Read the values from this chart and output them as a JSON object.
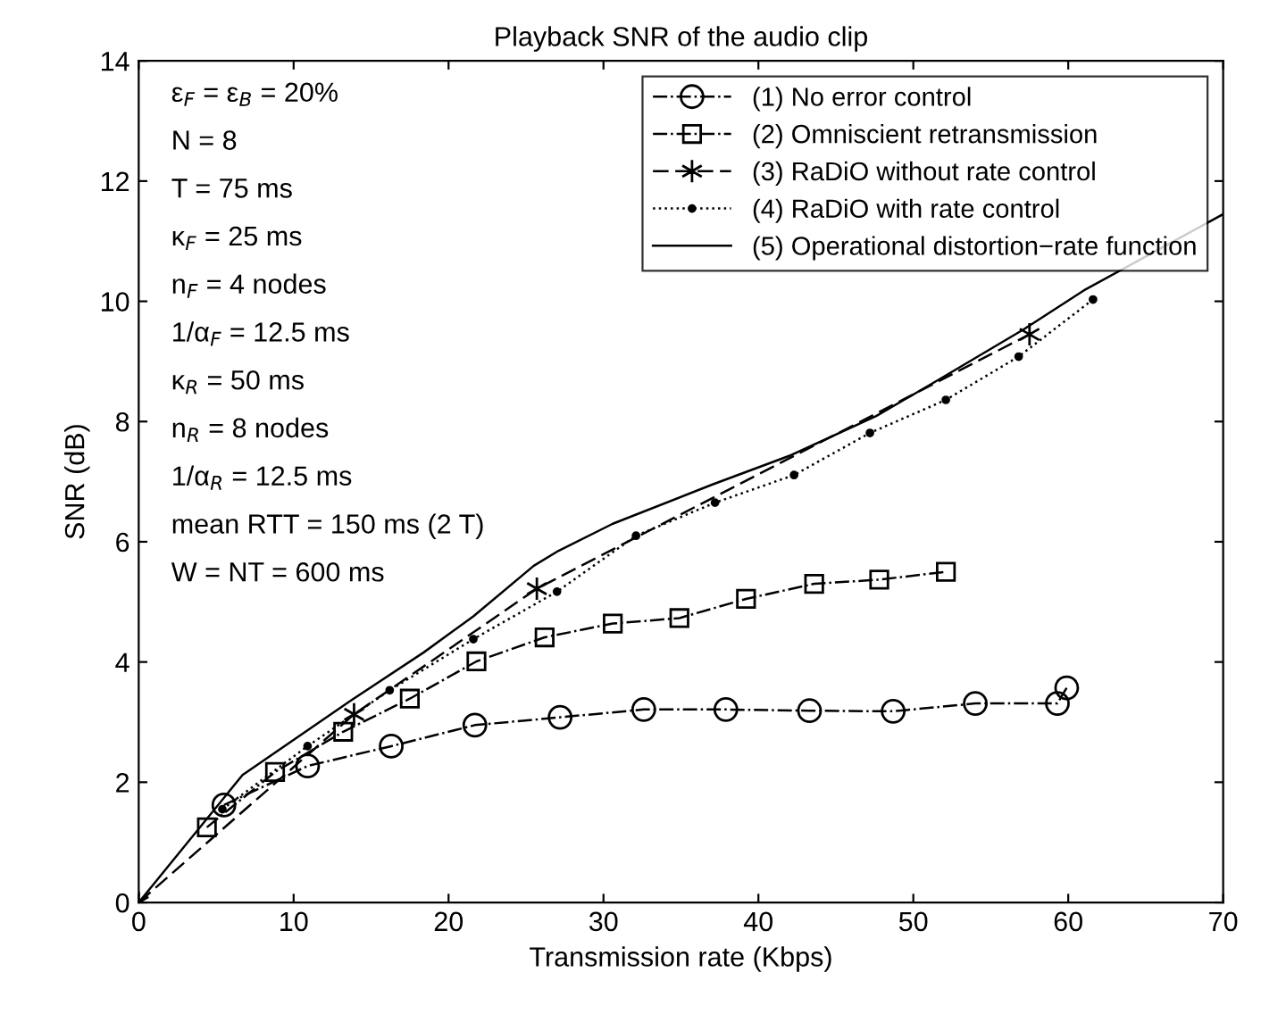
{
  "chart_data": {
    "type": "line",
    "title": "Playback SNR of the audio clip",
    "xlabel": "Transmission rate (Kbps)",
    "ylabel": "SNR (dB)",
    "xlim": [
      0,
      70
    ],
    "ylim": [
      0,
      14
    ],
    "xticks": [
      0,
      10,
      20,
      30,
      40,
      50,
      60,
      70
    ],
    "yticks": [
      0,
      2,
      4,
      6,
      8,
      10,
      12,
      14
    ],
    "grid": false,
    "legend": "top right",
    "series": [
      {
        "name": "(1) No error control",
        "color": "#000000",
        "marker": "circle",
        "line_style": "dashdot",
        "x": [
          5.5,
          10.9,
          16.3,
          21.7,
          27.2,
          32.6,
          37.9,
          43.3,
          48.7,
          54.0,
          59.3,
          59.9
        ],
        "values": [
          1.62,
          2.27,
          2.6,
          2.95,
          3.08,
          3.21,
          3.21,
          3.19,
          3.18,
          3.31,
          3.31,
          3.57
        ]
      },
      {
        "name": "(2) Omniscient retransmission",
        "color": "#000000",
        "marker": "square",
        "line_style": "dashdot",
        "x": [
          4.4,
          8.8,
          13.2,
          17.5,
          21.8,
          26.2,
          30.6,
          34.9,
          39.2,
          43.6,
          47.8,
          52.1
        ],
        "values": [
          1.25,
          2.17,
          2.84,
          3.39,
          4.01,
          4.41,
          4.64,
          4.73,
          5.05,
          5.3,
          5.37,
          5.5
        ]
      },
      {
        "name": "(3) RaDiO without rate control",
        "color": "#000000",
        "marker": "cross",
        "line_style": "dashed",
        "x": [
          0,
          13.9,
          25.7,
          57.5
        ],
        "values": [
          0,
          3.13,
          5.22,
          9.45
        ]
      },
      {
        "name": "(4) RaDiO with rate control",
        "color": "#000000",
        "marker": "dot",
        "line_style": "dotted",
        "x": [
          5.4,
          10.9,
          16.2,
          21.6,
          27.0,
          32.1,
          37.2,
          42.3,
          47.2,
          52.1,
          56.8,
          61.6
        ],
        "values": [
          1.55,
          2.6,
          3.53,
          4.38,
          5.17,
          6.1,
          6.65,
          7.11,
          7.81,
          8.36,
          9.08,
          10.03
        ]
      },
      {
        "name": "(5) Operational distortion−rate function",
        "color": "#000000",
        "marker": "none",
        "line_style": "solid",
        "x": [
          0,
          6.7,
          13.7,
          18.4,
          21.6,
          25.5,
          27.1,
          30.6,
          37.0,
          42.1,
          47.6,
          51.6,
          57.1,
          61.0,
          70
        ],
        "values": [
          0,
          2.12,
          3.36,
          4.16,
          4.76,
          5.6,
          5.85,
          6.3,
          6.95,
          7.44,
          8.09,
          8.69,
          9.53,
          10.18,
          11.45
        ]
      }
    ],
    "annotations": [
      "ε$_{F}$ = ε$_{B}$ = 20%",
      "N = 8",
      "T = 75 ms",
      "κ$_{F}$ = 25 ms",
      "n$_{F}$ = 4 nodes",
      "1/α$_{F}$ = 12.5 ms",
      "κ$_{R}$ = 50 ms",
      "n$_{R}$ = 8 nodes",
      "1/α$_{R}$ = 12.5 ms",
      "mean RTT = 150 ms (2 T)",
      "W = NT = 600 ms"
    ]
  }
}
